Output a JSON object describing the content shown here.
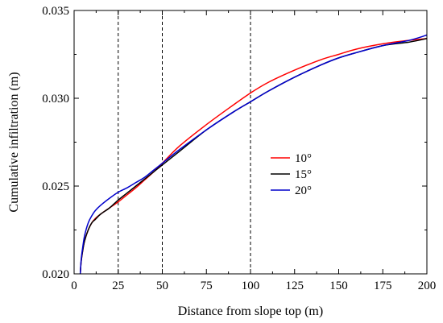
{
  "chart_data": {
    "type": "line",
    "xlabel": "Distance from slope top (m)",
    "ylabel": "Cumulative infiltration  (m)",
    "xlim": [
      0,
      200
    ],
    "ylim": [
      0.02,
      0.035
    ],
    "xticks": [
      0,
      25,
      50,
      75,
      100,
      125,
      150,
      175,
      200
    ],
    "xtick_labels": [
      "0",
      "25",
      "50",
      "75",
      "100",
      "125",
      "150",
      "175",
      "200"
    ],
    "yticks": [
      0.02,
      0.025,
      0.03,
      0.035
    ],
    "ytick_labels": [
      "0.020",
      "0.025",
      "0.030",
      "0.035"
    ],
    "grid": false,
    "legend_position": "middle-right",
    "reference_lines_x": [
      25,
      50,
      100
    ],
    "series": [
      {
        "name": "10°",
        "color": "#ff0000",
        "x": [
          3.5,
          4,
          5,
          6,
          8,
          10,
          12,
          15,
          20,
          25,
          30,
          35,
          40,
          45,
          50,
          60,
          75,
          90,
          100,
          110,
          125,
          140,
          150,
          160,
          175,
          190,
          200
        ],
        "y": [
          0.02,
          0.0207,
          0.0214,
          0.0219,
          0.0225,
          0.0229,
          0.02315,
          0.0234,
          0.02375,
          0.0241,
          0.0245,
          0.0249,
          0.02535,
          0.0258,
          0.0263,
          0.0273,
          0.0285,
          0.0296,
          0.0303,
          0.0309,
          0.0316,
          0.0322,
          0.0325,
          0.0328,
          0.0331,
          0.0333,
          0.0334
        ]
      },
      {
        "name": "15°",
        "color": "#000000",
        "x": [
          3.5,
          4,
          5,
          6,
          8,
          10,
          12,
          15,
          20,
          25,
          30,
          35,
          40,
          45,
          50,
          60,
          75,
          90,
          100,
          110,
          125,
          140,
          150,
          160,
          175,
          190,
          200
        ],
        "y": [
          0.02,
          0.0207,
          0.0214,
          0.0219,
          0.0225,
          0.0229,
          0.0231,
          0.0234,
          0.02375,
          0.0242,
          0.0246,
          0.025,
          0.0254,
          0.0258,
          0.0262,
          0.027,
          0.0282,
          0.0292,
          0.0298,
          0.0304,
          0.0312,
          0.0319,
          0.0323,
          0.0326,
          0.033,
          0.0332,
          0.0334
        ]
      },
      {
        "name": "20°",
        "color": "#0000cc",
        "x": [
          3.5,
          4,
          5,
          6,
          8,
          10,
          12,
          15,
          20,
          25,
          30,
          35,
          40,
          45,
          50,
          60,
          75,
          90,
          100,
          110,
          125,
          140,
          150,
          160,
          175,
          190,
          200
        ],
        "y": [
          0.02,
          0.0208,
          0.0216,
          0.0222,
          0.0229,
          0.0233,
          0.0236,
          0.0239,
          0.0243,
          0.02465,
          0.0249,
          0.0252,
          0.0255,
          0.0259,
          0.0263,
          0.0271,
          0.0282,
          0.0292,
          0.0298,
          0.0304,
          0.0312,
          0.0319,
          0.0323,
          0.0326,
          0.033,
          0.0333,
          0.0336
        ]
      }
    ]
  }
}
